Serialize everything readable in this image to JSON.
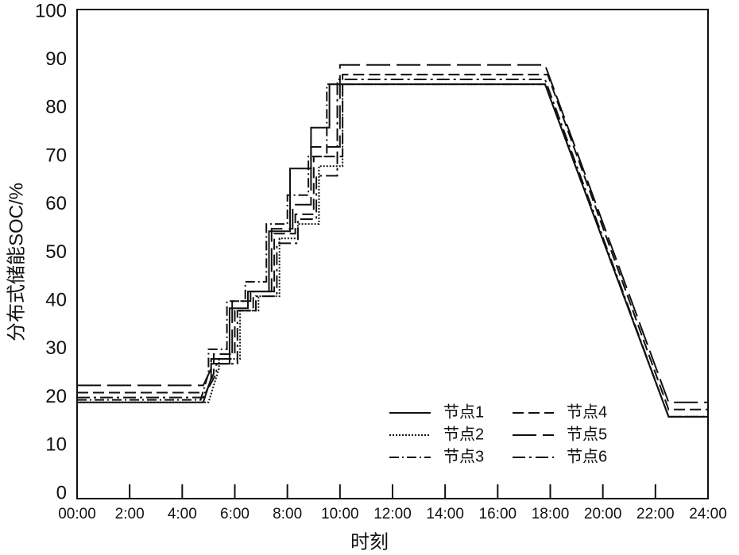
{
  "chart_data": {
    "type": "line",
    "xlabel": "时刻",
    "ylabel": "分布式储能SOC/%",
    "xlim": [
      0,
      24
    ],
    "xticks": [
      {
        "value": 0,
        "label": "00:00"
      },
      {
        "value": 2,
        "label": "2:00"
      },
      {
        "value": 4,
        "label": "4:00"
      },
      {
        "value": 6,
        "label": "6:00"
      },
      {
        "value": 8,
        "label": "8:00"
      },
      {
        "value": 10,
        "label": "10:00"
      },
      {
        "value": 12,
        "label": "12:00"
      },
      {
        "value": 14,
        "label": "14:00"
      },
      {
        "value": 16,
        "label": "16:00"
      },
      {
        "value": 18,
        "label": "18:00"
      },
      {
        "value": 20,
        "label": "20:00"
      },
      {
        "value": 22,
        "label": "22:00"
      },
      {
        "value": 24,
        "label": "24:00"
      }
    ],
    "ylim": [
      0,
      100
    ],
    "yticks": [
      0,
      10,
      20,
      30,
      40,
      50,
      60,
      70,
      80,
      90,
      100
    ],
    "legend": "lower right",
    "series": [
      {
        "name": "节点1",
        "color": "#111111",
        "dash": "none",
        "x": [
          0,
          4.8,
          5.1,
          5.1,
          5.8,
          5.8,
          6.5,
          6.5,
          7.3,
          7.3,
          8.1,
          8.1,
          8.9,
          8.9,
          9.6,
          9.6,
          17.8,
          22.5,
          24
        ],
        "values": [
          19,
          19,
          24,
          27,
          27,
          38.5,
          38.5,
          42,
          42,
          54.5,
          54.5,
          67.5,
          67.5,
          76,
          76,
          85,
          85,
          16,
          16
        ]
      },
      {
        "name": "节点2",
        "color": "#111111",
        "dash": "2,2",
        "x": [
          0,
          5.0,
          5.4,
          5.4,
          6.2,
          6.2,
          6.9,
          6.9,
          7.7,
          7.7,
          8.4,
          8.4,
          9.2,
          9.2,
          10.1,
          10.1,
          17.8,
          22.5,
          24
        ],
        "values": [
          19,
          19,
          26,
          28,
          28,
          38,
          38,
          41,
          41,
          53,
          53,
          56,
          56,
          68,
          68,
          85,
          85,
          16,
          16
        ]
      },
      {
        "name": "节点3",
        "color": "#111111",
        "dash": "12,4,2,4",
        "x": [
          0,
          4.7,
          5.0,
          5.0,
          5.7,
          5.7,
          6.4,
          6.4,
          7.2,
          7.2,
          8.0,
          8.0,
          8.8,
          8.8,
          9.5,
          9.5,
          17.8,
          22.5,
          24
        ],
        "values": [
          19.5,
          19.5,
          25,
          30,
          30,
          40,
          40,
          44,
          44,
          56,
          56,
          62,
          62,
          70,
          70,
          85,
          85,
          16,
          16
        ]
      },
      {
        "name": "节点4",
        "color": "#111111",
        "dash": "14,6",
        "x": [
          0,
          4.9,
          5.2,
          5.2,
          6.0,
          6.0,
          6.7,
          6.7,
          7.5,
          7.5,
          8.3,
          8.3,
          9.0,
          9.0,
          10.1,
          10.1,
          17.9,
          22.5,
          24
        ],
        "values": [
          21,
          21,
          25,
          29,
          29,
          38,
          38,
          42,
          42,
          54,
          54,
          58,
          58,
          70,
          70,
          87,
          87,
          17.5,
          17.5
        ]
      },
      {
        "name": "节点5",
        "color": "#111111",
        "dash": "30,8",
        "x": [
          0,
          4.8,
          5.1,
          5.1,
          5.9,
          5.9,
          6.6,
          6.6,
          7.4,
          7.4,
          8.2,
          8.2,
          8.9,
          8.9,
          10.0,
          10.0,
          17.8,
          22.5,
          24
        ],
        "values": [
          22.5,
          22.5,
          26,
          28,
          28,
          40,
          40,
          42,
          42,
          55,
          55,
          60,
          60,
          72,
          72,
          89,
          89,
          19,
          19
        ]
      },
      {
        "name": "节点6",
        "color": "#111111",
        "dash": "16,5,3,5",
        "x": [
          0,
          4.8,
          5.3,
          5.3,
          6.1,
          6.1,
          6.8,
          6.8,
          7.6,
          7.6,
          8.4,
          8.4,
          9.1,
          9.1,
          9.9,
          9.9,
          17.8,
          22.5,
          24
        ],
        "values": [
          20,
          20,
          25,
          27,
          27,
          38,
          38,
          41,
          41,
          52,
          52,
          57,
          57,
          66,
          66,
          86,
          86,
          16,
          16
        ]
      }
    ]
  }
}
